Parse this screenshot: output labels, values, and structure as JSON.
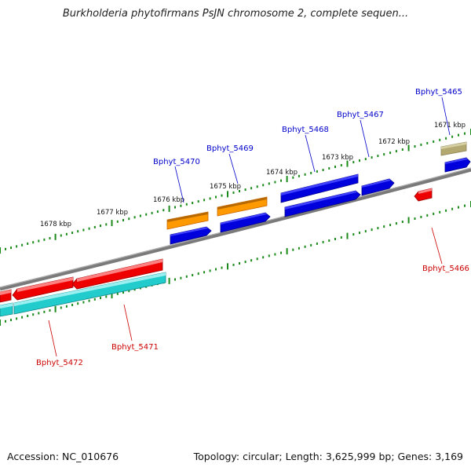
{
  "title": "Burkholderia phytofirmans PsJN chromosome 2, complete sequen...",
  "footer": {
    "accession": "Accession: NC_010676",
    "summary": "Topology: circular; Length: 3,625,999 bp; Genes: 3,169"
  },
  "scale_labels": [
    "1671 kbp",
    "1672 kbp",
    "1673 kbp",
    "1674 kbp",
    "1675 kbp",
    "1676 kbp",
    "1677 kbp",
    "1678 kbp"
  ],
  "gene_labels": [
    "Bphyt_5465",
    "Bphyt_5466",
    "Bphyt_5467",
    "Bphyt_5468",
    "Bphyt_5469",
    "Bphyt_5470",
    "Bphyt_5471",
    "Bphyt_5472"
  ],
  "colors": {
    "backbone": "#808080",
    "tick": "#1a8a1a",
    "cds_blue": "#0000dd",
    "gene_red": "#ee0000",
    "gene_orange": "#ff9900",
    "gene_olive": "#b3a870",
    "cds_cyan": "#22cccc",
    "label_blue": "#0000cc",
    "label_red": "#cc0000"
  }
}
